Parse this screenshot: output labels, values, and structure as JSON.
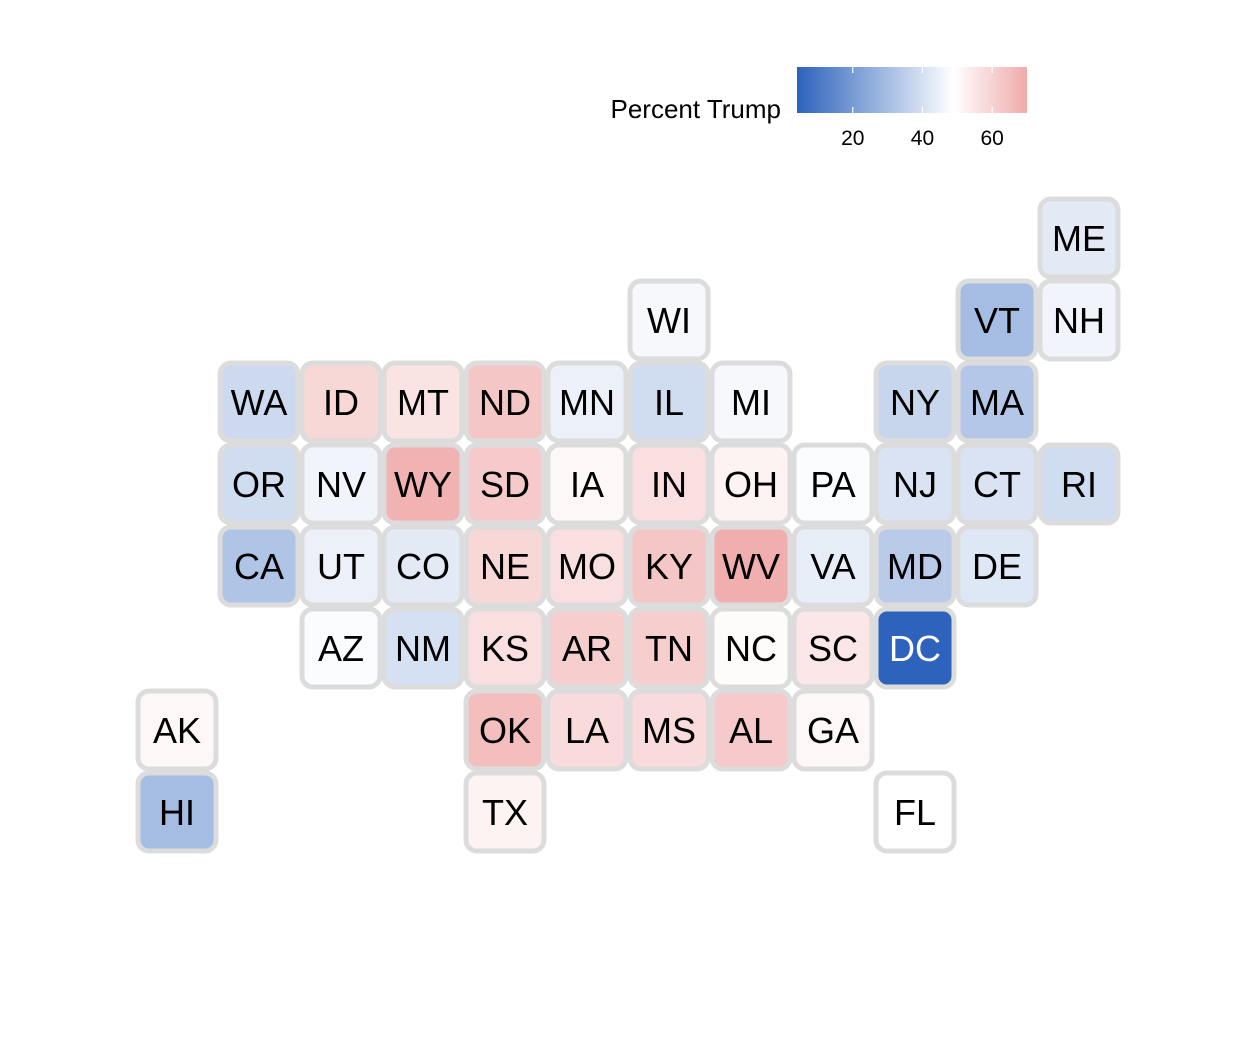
{
  "chart_data": {
    "type": "tile-map",
    "legend": {
      "title": "Percent Trump",
      "ticks": [
        20,
        40,
        60
      ],
      "range": [
        4,
        70
      ],
      "midpoint": 49,
      "low_color": "#2d62bd",
      "mid_color": "#ffffff",
      "high_color": "#f0aaaa"
    },
    "tile_border_color": "#dcdcdc",
    "states": [
      {
        "abbr": "ME",
        "col": 12,
        "row": 1,
        "value": 43
      },
      {
        "abbr": "WI",
        "col": 7,
        "row": 2,
        "value": 47
      },
      {
        "abbr": "VT",
        "col": 11,
        "row": 2,
        "value": 30
      },
      {
        "abbr": "NH",
        "col": 12,
        "row": 2,
        "value": 46
      },
      {
        "abbr": "WA",
        "col": 2,
        "row": 3,
        "value": 38
      },
      {
        "abbr": "ID",
        "col": 3,
        "row": 3,
        "value": 59
      },
      {
        "abbr": "MT",
        "col": 4,
        "row": 3,
        "value": 56
      },
      {
        "abbr": "ND",
        "col": 5,
        "row": 3,
        "value": 63
      },
      {
        "abbr": "MN",
        "col": 6,
        "row": 3,
        "value": 45
      },
      {
        "abbr": "IL",
        "col": 7,
        "row": 3,
        "value": 39
      },
      {
        "abbr": "MI",
        "col": 8,
        "row": 3,
        "value": 47
      },
      {
        "abbr": "NY",
        "col": 10,
        "row": 3,
        "value": 37
      },
      {
        "abbr": "MA",
        "col": 11,
        "row": 3,
        "value": 33
      },
      {
        "abbr": "OR",
        "col": 2,
        "row": 4,
        "value": 39
      },
      {
        "abbr": "NV",
        "col": 3,
        "row": 4,
        "value": 46
      },
      {
        "abbr": "WY",
        "col": 4,
        "row": 4,
        "value": 68
      },
      {
        "abbr": "SD",
        "col": 5,
        "row": 4,
        "value": 62
      },
      {
        "abbr": "IA",
        "col": 6,
        "row": 4,
        "value": 51
      },
      {
        "abbr": "IN",
        "col": 7,
        "row": 4,
        "value": 57
      },
      {
        "abbr": "OH",
        "col": 8,
        "row": 4,
        "value": 52
      },
      {
        "abbr": "PA",
        "col": 9,
        "row": 4,
        "value": 48
      },
      {
        "abbr": "NJ",
        "col": 10,
        "row": 4,
        "value": 41
      },
      {
        "abbr": "CT",
        "col": 11,
        "row": 4,
        "value": 41
      },
      {
        "abbr": "RI",
        "col": 12,
        "row": 4,
        "value": 39
      },
      {
        "abbr": "CA",
        "col": 2,
        "row": 5,
        "value": 32
      },
      {
        "abbr": "UT",
        "col": 3,
        "row": 5,
        "value": 45
      },
      {
        "abbr": "CO",
        "col": 4,
        "row": 5,
        "value": 43
      },
      {
        "abbr": "NE",
        "col": 5,
        "row": 5,
        "value": 59
      },
      {
        "abbr": "MO",
        "col": 6,
        "row": 5,
        "value": 57
      },
      {
        "abbr": "KY",
        "col": 7,
        "row": 5,
        "value": 63
      },
      {
        "abbr": "WV",
        "col": 8,
        "row": 5,
        "value": 69
      },
      {
        "abbr": "VA",
        "col": 9,
        "row": 5,
        "value": 44
      },
      {
        "abbr": "MD",
        "col": 10,
        "row": 5,
        "value": 34
      },
      {
        "abbr": "DE",
        "col": 11,
        "row": 5,
        "value": 42
      },
      {
        "abbr": "AZ",
        "col": 3,
        "row": 6,
        "value": 48
      },
      {
        "abbr": "NM",
        "col": 4,
        "row": 6,
        "value": 40
      },
      {
        "abbr": "KS",
        "col": 5,
        "row": 6,
        "value": 57
      },
      {
        "abbr": "AR",
        "col": 6,
        "row": 6,
        "value": 61
      },
      {
        "abbr": "TN",
        "col": 7,
        "row": 6,
        "value": 61
      },
      {
        "abbr": "NC",
        "col": 8,
        "row": 6,
        "value": 50
      },
      {
        "abbr": "SC",
        "col": 9,
        "row": 6,
        "value": 55
      },
      {
        "abbr": "DC",
        "col": 10,
        "row": 6,
        "value": 4
      },
      {
        "abbr": "AK",
        "col": 1,
        "row": 7,
        "value": 51
      },
      {
        "abbr": "OK",
        "col": 5,
        "row": 7,
        "value": 65
      },
      {
        "abbr": "LA",
        "col": 6,
        "row": 7,
        "value": 58
      },
      {
        "abbr": "MS",
        "col": 7,
        "row": 7,
        "value": 58
      },
      {
        "abbr": "AL",
        "col": 8,
        "row": 7,
        "value": 62
      },
      {
        "abbr": "GA",
        "col": 9,
        "row": 7,
        "value": 51
      },
      {
        "abbr": "HI",
        "col": 1,
        "row": 8,
        "value": 30
      },
      {
        "abbr": "TX",
        "col": 5,
        "row": 8,
        "value": 52
      },
      {
        "abbr": "FL",
        "col": 10,
        "row": 8,
        "value": 49
      }
    ]
  }
}
